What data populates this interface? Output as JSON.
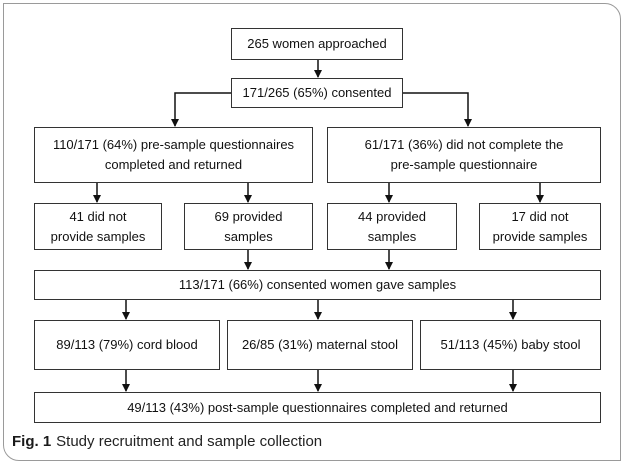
{
  "nodes": [
    {
      "lines": [
        "265 women approached"
      ]
    },
    {
      "lines": [
        "171/265 (65%) consented"
      ]
    },
    {
      "lines": [
        "110/171 (64%) pre-sample questionnaires",
        "completed and returned"
      ]
    },
    {
      "lines": [
        "61/171 (36%) did not complete the",
        "pre-sample questionnaire"
      ]
    },
    {
      "lines": [
        "41 did not",
        "provide samples"
      ]
    },
    {
      "lines": [
        "69 provided",
        "samples"
      ]
    },
    {
      "lines": [
        "44 provided",
        "samples"
      ]
    },
    {
      "lines": [
        "17 did not",
        "provide samples"
      ]
    },
    {
      "lines": [
        "113/171 (66%) consented women gave samples"
      ]
    },
    {
      "lines": [
        "89/113 (79%) cord blood"
      ]
    },
    {
      "lines": [
        "26/85 (31%) maternal stool"
      ]
    },
    {
      "lines": [
        "51/113 (45%) baby stool"
      ]
    },
    {
      "lines": [
        "49/113 (43%) post-sample questionnaires completed and returned"
      ]
    }
  ],
  "caption": {
    "label": "Fig. 1",
    "text": "Study recruitment and sample collection"
  }
}
